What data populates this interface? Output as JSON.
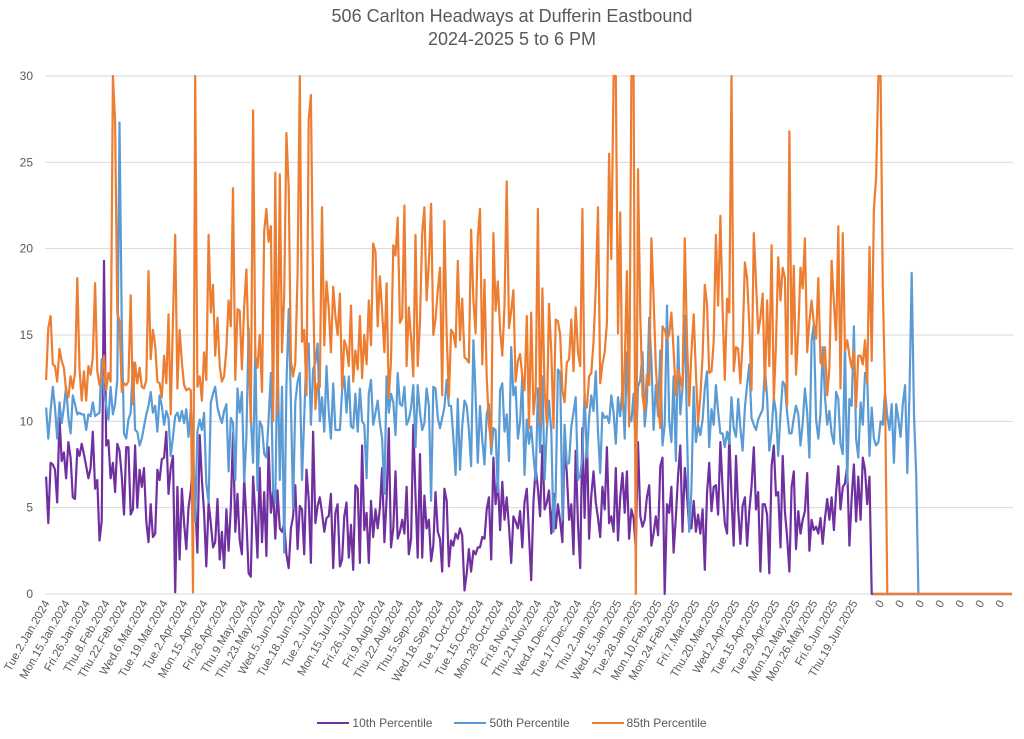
{
  "chart_data": {
    "type": "line",
    "title": "506 Carlton Headways at Dufferin Eastbound",
    "subtitle": "2024-2025 5 to 6 PM",
    "xlabel": "",
    "ylabel": "",
    "ylim": [
      0,
      30
    ],
    "yticks": [
      0,
      5,
      10,
      15,
      20,
      25,
      30
    ],
    "grid": true,
    "legend_position": "bottom",
    "x_tick_labels": [
      "Tue.2.Jan.2024",
      "Mon.15.Jan.2024",
      "Fri.26.Jan.2024",
      "Thu.8.Feb.2024",
      "Thu.22.Feb.2024",
      "Wed.6.Mar.2024",
      "Tue.19.Mar.2024",
      "Tue.2.Apr.2024",
      "Mon.15.Apr.2024",
      "Fri.26.Apr.2024",
      "Thu.9.May.2024",
      "Thu.23.May.2024",
      "Wed.5.Jun.2024",
      "Tue.18.Jun.2024",
      "Tue.2.Jul.2024",
      "Mon.15.Jul.2024",
      "Fri.26.Jul.2024",
      "Fri.9.Aug.2024",
      "Thu.22.Aug.2024",
      "Thu.5.Sep.2024",
      "Wed.18.Sep.2024",
      "Tue.1.Oct.2024",
      "Tue.15.Oct.2024",
      "Mon.28.Oct.2024",
      "Fri.8.Nov.2024",
      "Thu.21.Nov.2024",
      "Wed.4.Dec.2024",
      "Tue.17.Dec.2024",
      "Thu.2.Jan.2025",
      "Wed.15.Jan.2025",
      "Tue.28.Jan.2025",
      "Mon.10.Feb.2025",
      "Mon.24.Feb.2025",
      "Fri.7.Mar.2025",
      "Thu.20.Mar.2025",
      "Wed.2.Apr.2025",
      "Tue.15.Apr.2025",
      "Tue.29.Apr.2025",
      "Mon.12.May.2025",
      "Mon.26.May.2025",
      "Fri.6.Jun.2025",
      "Thu.19.Jun.2025",
      "0",
      "0",
      "0",
      "0",
      "0",
      "0",
      "0"
    ],
    "points_per_tick": 9,
    "date_tick_count": 42,
    "trailing_zero_points": 63,
    "series": [
      {
        "name": "10th Percentile",
        "color": "#7030a0",
        "values": [
          6.8,
          4.1,
          7.6,
          7.5,
          7.2,
          5.3,
          10.2,
          7.7,
          8.2,
          6.7,
          8.8,
          7.9,
          5.6,
          5.5,
          8.4,
          8.0,
          8.7,
          8.1,
          7.4,
          6.7,
          7.3,
          9.4,
          6.1,
          6.6,
          3.1,
          4.2,
          19.3,
          8.6,
          8.9,
          6.7,
          7.6,
          5.9,
          8.7,
          8.3,
          6.8,
          4.6,
          8.5,
          8.5,
          4.6,
          4.9,
          8.6,
          5.0,
          7.2,
          6.2,
          7.3,
          4.2,
          3.0,
          5.2,
          3.3,
          3.5,
          7.2,
          6.6,
          7.8,
          7.9,
          9.4,
          5.8,
          7.3,
          8.0,
          0.1,
          6.2,
          2.0,
          6.1,
          4.1,
          2.6,
          5.0,
          6.0,
          7.6,
          5.4,
          2.4,
          9.2,
          6.6,
          4.7,
          1.6,
          5.3,
          4.1,
          2.7,
          3.0,
          5.5,
          2.0,
          3.6,
          1.5,
          4.9,
          2.5,
          5.0,
          9.3,
          3.6,
          5.8,
          3.1,
          2.3,
          6.7,
          4.3,
          1.2,
          1.0,
          6.8,
          4.6,
          2.1,
          7.3,
          3.0,
          5.9,
          2.2,
          8.5,
          4.7,
          6.0,
          3.2,
          6.0,
          3.8,
          3.6,
          4.1,
          2.3,
          1.5,
          3.8,
          4.5,
          6.3,
          2.6,
          5.1,
          4.9,
          2.3,
          7.2,
          5.5,
          1.8,
          9.4,
          4.1,
          5.1,
          5.6,
          4.7,
          3.6,
          4.4,
          4.5,
          5.8,
          1.5,
          4.7,
          5.2,
          1.6,
          2.0,
          4.5,
          5.3,
          2.1,
          4.0,
          1.4,
          6.3,
          6.1,
          1.8,
          8.6,
          3.7,
          4.7,
          1.8,
          5.4,
          3.3,
          4.9,
          3.8,
          5.0,
          7.3,
          3.0,
          5.5,
          9.6,
          2.7,
          3.8,
          7.1,
          3.2,
          3.6,
          4.3,
          3.5,
          6.2,
          2.3,
          3.2,
          9.8,
          5.7,
          2.1,
          8.1,
          2.1,
          5.7,
          3.8,
          4.3,
          1.9,
          2.8,
          5.9,
          3.6,
          3.2,
          1.3,
          6.1,
          5.4,
          1.6,
          3.1,
          2.8,
          3.5,
          3.2,
          3.8,
          3.4,
          0.2,
          1.2,
          2.6,
          1.3,
          2.5,
          2.3,
          2.7,
          2.7,
          3.3,
          3.2,
          4.9,
          5.6,
          2.0,
          7.9,
          5.2,
          6.7,
          3.7,
          6.5,
          4.3,
          5.6,
          3.9,
          1.8,
          4.5,
          4.2,
          3.8,
          4.8,
          2.7,
          5.3,
          6.1,
          3.4,
          0.8,
          5.4,
          7.3,
          6.1,
          4.5,
          8.6,
          4.9,
          5.3,
          6.0,
          3.5,
          5.8,
          3.8,
          5.2,
          4.2,
          3.0,
          8.8,
          7.0,
          4.3,
          5.2,
          2.3,
          8.3,
          4.0,
          1.5,
          9.6,
          4.4,
          9.2,
          3.2,
          5.7,
          7.1,
          5.3,
          4.4,
          3.3,
          6.2,
          4.9,
          8.5,
          4.1,
          4.5,
          3.6,
          7.3,
          3.1,
          5.6,
          7.0,
          4.7,
          7.1,
          3.2,
          4.9,
          4.4,
          2.6,
          8.8,
          4.5,
          3.9,
          4.3,
          5.6,
          6.3,
          2.8,
          3.5,
          4.5,
          3.4,
          7.4,
          7.9,
          0.0,
          5.2,
          4.7,
          6.2,
          2.4,
          4.5,
          6.9,
          8.6,
          3.6,
          7.3,
          5.7,
          3.9,
          3.8,
          5.4,
          3.6,
          4.6,
          3.5,
          4.9,
          1.4,
          5.8,
          7.6,
          4.8,
          6.2,
          6.3,
          4.6,
          8.8,
          6.1,
          4.1,
          3.5,
          9.3,
          5.6,
          2.8,
          8.0,
          4.9,
          2.9,
          5.1,
          5.6,
          2.8,
          4.8,
          6.2,
          8.5,
          4.9,
          5.9,
          1.3,
          5.2,
          5.2,
          4.6,
          1.2,
          7.4,
          8.6,
          5.7,
          5.9,
          2.7,
          8.0,
          4.8,
          3.3,
          1.3,
          6.2,
          7.1,
          2.6,
          4.8,
          3.5,
          4.3,
          4.8,
          7.0,
          2.5,
          4.3,
          3.7,
          3.9,
          3.5,
          4.4,
          2.9,
          4.4,
          5.5,
          4.3,
          5.6,
          3.7,
          5.9,
          7.4,
          4.9,
          6.2,
          6.4,
          7.4,
          2.8,
          5.6,
          7.5,
          4.2,
          6.8,
          4.3,
          7.9,
          7.2,
          5.2,
          6.8,
          0.0
        ]
      },
      {
        "name": "50th Percentile",
        "color": "#5b9bd5",
        "values": [
          10.8,
          9.0,
          10.6,
          12.0,
          10.8,
          9.0,
          11.1,
          9.9,
          10.8,
          12.0,
          10.2,
          9.3,
          11.5,
          11.0,
          10.4,
          10.5,
          10.4,
          10.4,
          9.5,
          10.4,
          10.3,
          11.1,
          10.3,
          10.4,
          10.5,
          13.6,
          11.6,
          10.9,
          10.1,
          12.0,
          10.4,
          11.0,
          12.4,
          27.3,
          15.4,
          9.3,
          9.0,
          10.1,
          10.5,
          13.4,
          9.5,
          9.4,
          8.6,
          9.0,
          9.7,
          10.4,
          10.9,
          11.7,
          10.5,
          10.9,
          9.4,
          11.5,
          10.9,
          9.8,
          10.6,
          10.2,
          8.0,
          9.1,
          10.3,
          10.5,
          10.0,
          10.6,
          9.9,
          10.7,
          9.1,
          10.7,
          9.0,
          4.2,
          9.4,
          10.1,
          9.5,
          10.5,
          6.4,
          5.3,
          11.1,
          11.6,
          12.0,
          10.8,
          10.3,
          9.9,
          10.6,
          11.0,
          7.1,
          10.2,
          9.9,
          6.6,
          11.9,
          10.5,
          11.7,
          6.5,
          9.1,
          15.4,
          10.2,
          7.6,
          14.3,
          6.0,
          10.0,
          9.7,
          8.1,
          7.9,
          10.1,
          12.8,
          6.0,
          5.3,
          14.4,
          6.6,
          12.0,
          2.4,
          12.0,
          16.5,
          11.1,
          5.0,
          11.1,
          12.3,
          12.8,
          6.6,
          10.2,
          14.0,
          14.5,
          9.8,
          13.0,
          13.4,
          14.5,
          10.0,
          11.4,
          9.4,
          13.2,
          10.6,
          9.0,
          12.2,
          9.5,
          9.5,
          9.5,
          11.8,
          12.6,
          10.5,
          12.6,
          9.7,
          9.6,
          11.6,
          9.4,
          11.9,
          10.0,
          9.8,
          6.7,
          11.6,
          12.4,
          9.8,
          10.5,
          11.2,
          9.9,
          9.0,
          5.8,
          12.6,
          10.5,
          11.6,
          11.1,
          9.2,
          12.8,
          11.0,
          10.9,
          12.0,
          9.8,
          10.1,
          10.8,
          12.1,
          8.5,
          12.1,
          10.5,
          9.5,
          9.9,
          11.9,
          10.9,
          5.4,
          12.0,
          11.9,
          10.2,
          9.6,
          10.2,
          10.8,
          12.4,
          10.9,
          10.9,
          9.1,
          6.9,
          11.3,
          7.2,
          9.7,
          11.2,
          10.9,
          9.5,
          7.4,
          14.7,
          11.5,
          7.6,
          10.9,
          8.9,
          7.5,
          10.4,
          11.0,
          8.1,
          9.6,
          9.5,
          5.9,
          11.8,
          12.2,
          9.4,
          10.4,
          7.7,
          14.3,
          11.5,
          12.0,
          9.0,
          10.0,
          12.6,
          6.9,
          10.1,
          8.7,
          9.7,
          8.0,
          6.6,
          11.9,
          8.2,
          12.6,
          6.6,
          9.5,
          11.2,
          9.4,
          3.6,
          5.9,
          13.0,
          12.8,
          4.3,
          9.8,
          7.5,
          7.6,
          9.7,
          10.5,
          11.4,
          6.6,
          6.9,
          7.9,
          11.6,
          7.9,
          10.2,
          11.5,
          10.6,
          12.9,
          9.4,
          7.0,
          10.5,
          10.2,
          10.3,
          9.9,
          11.5,
          10.5,
          8.7,
          11.4,
          10.3,
          12.0,
          9.0,
          14.0,
          10.4,
          10.0,
          11.6,
          7.9,
          12.0,
          12.4,
          14.0,
          9.7,
          11.2,
          16.0,
          13.5,
          9.5,
          12.1,
          10.3,
          14.1,
          8.6,
          9.8,
          16.7,
          10.0,
          8.8,
          12.6,
          7.7,
          14.9,
          10.4,
          11.9,
          16.1,
          9.5,
          3.6,
          6.0,
          12.0,
          8.8,
          9.8,
          9.2,
          10.1,
          11.9,
          12.9,
          8.5,
          10.7,
          9.8,
          12.1,
          10.6,
          9.3,
          9.3,
          8.5,
          9.4,
          8.7,
          11.4,
          9.6,
          9.1,
          11.3,
          9.6,
          8.3,
          10.8,
          12.1,
          13.3,
          10.2,
          9.8,
          9.5,
          10.1,
          10.4,
          10.7,
          13.1,
          11.4,
          8.3,
          9.4,
          11.4,
          10.5,
          8.0,
          10.4,
          12.3,
          12.1,
          10.5,
          9.3,
          9.3,
          10.2,
          10.9,
          10.4,
          8.6,
          9.9,
          11.9,
          10.5,
          7.9,
          14.7,
          15.6,
          10.1,
          9.0,
          10.5,
          14.3,
          11.4,
          9.8,
          10.6,
          9.3,
          8.7,
          11.7,
          11.3,
          8.7,
          8.1,
          14.5,
          6.4,
          11.3,
          10.9,
          15.5,
          9.0,
          7.9,
          11.1,
          9.8,
          12.8,
          12.6,
          8.0,
          10.8,
          9.0,
          8.6,
          8.8,
          10.0,
          9.8,
          11.7,
          10.3,
          9.5,
          11.0,
          7.6,
          11.0,
          10.1,
          9.1,
          11.0,
          12.1,
          7.0,
          11.6,
          18.6,
          10.4,
          6.9,
          0.0
        ]
      },
      {
        "name": "85th Percentile",
        "color": "#ed7d31",
        "values": [
          12.4,
          15.4,
          16.1,
          13.3,
          13.2,
          12.3,
          14.2,
          13.5,
          13.1,
          11.8,
          11.4,
          12.6,
          11.9,
          12.8,
          18.3,
          13.1,
          11.2,
          12.9,
          11.2,
          13.2,
          12.7,
          13.7,
          18.0,
          12.9,
          12.1,
          12.6,
          13.8,
          11.8,
          12.8,
          12.3,
          30.0,
          27.4,
          16.3,
          15.8,
          11.7,
          12.2,
          12.1,
          12.3,
          17.3,
          11.0,
          13.4,
          12.2,
          13.1,
          12.0,
          11.9,
          12.4,
          18.7,
          13.6,
          15.3,
          14.4,
          12.3,
          12.2,
          11.4,
          13.8,
          12.2,
          16.2,
          10.4,
          16.0,
          20.8,
          11.9,
          15.3,
          13.4,
          12.1,
          11.8,
          11.9,
          11.8,
          0.1,
          30.0,
          12.0,
          12.6,
          11.2,
          14.0,
          12.4,
          20.8,
          16.3,
          17.9,
          13.8,
          16.0,
          13.2,
          12.3,
          12.6,
          14.2,
          17.0,
          15.5,
          23.5,
          12.4,
          16.5,
          16.4,
          13.0,
          16.7,
          18.8,
          14.2,
          9.9,
          28.0,
          13.8,
          13.1,
          15.0,
          11.7,
          21.0,
          22.3,
          20.4,
          21.3,
          10.0,
          24.4,
          10.5,
          24.3,
          14.0,
          17.3,
          26.7,
          23.5,
          13.5,
          12.6,
          13.4,
          18.6,
          30.0,
          14.6,
          15.3,
          11.5,
          27.5,
          28.9,
          17.8,
          10.7,
          12.2,
          12.0,
          22.4,
          14.4,
          18.1,
          16.6,
          14.0,
          17.8,
          16.1,
          15.0,
          17.4,
          11.9,
          14.7,
          14.3,
          13.2,
          16.7,
          12.3,
          14.1,
          13.0,
          16.1,
          12.5,
          15.0,
          13.3,
          17.0,
          14.4,
          20.3,
          19.8,
          15.5,
          18.4,
          16.4,
          14.0,
          18.0,
          11.4,
          13.5,
          20.2,
          19.6,
          21.8,
          15.7,
          16.0,
          22.5,
          13.2,
          16.6,
          14.8,
          12.6,
          20.8,
          13.2,
          15.8,
          20.9,
          22.4,
          17.0,
          19.2,
          22.6,
          15.0,
          15.9,
          17.6,
          18.9,
          11.5,
          21.6,
          15.0,
          11.4,
          15.3,
          15.1,
          14.3,
          19.3,
          14.7,
          17.1,
          13.7,
          13.6,
          13.4,
          21.1,
          17.0,
          15.1,
          20.7,
          22.3,
          13.3,
          18.2,
          12.6,
          9.9,
          8.6,
          20.9,
          16.4,
          18.1,
          15.3,
          13.8,
          16.7,
          23.9,
          15.4,
          16.4,
          17.6,
          12.3,
          13.5,
          13.9,
          12.6,
          11.8,
          16.1,
          9.6,
          16.3,
          10.4,
          11.8,
          22.3,
          9.8,
          17.7,
          11.8,
          9.9,
          16.8,
          14.0,
          9.6,
          15.9,
          15.8,
          15.0,
          11.8,
          11.1,
          13.4,
          13.6,
          15.9,
          12.9,
          16.6,
          14.0,
          13.2,
          22.3,
          11.2,
          10.8,
          12.6,
          12.8,
          14.6,
          17.8,
          22.4,
          12.2,
          13.3,
          14.0,
          15.7,
          25.5,
          19.4,
          30.0,
          30.0,
          15.1,
          22.1,
          10.7,
          13.2,
          18.7,
          9.7,
          30.0,
          30.0,
          0.0,
          24.6,
          16.1,
          11.5,
          10.6,
          12.7,
          12.1,
          20.6,
          17.1,
          13.2,
          10.9,
          9.6,
          15.5,
          15.3,
          14.8,
          15.0,
          16.3,
          14.1,
          11.5,
          13.0,
          12.5,
          11.9,
          20.6,
          14.7,
          10.9,
          14.0,
          16.2,
          12.8,
          9.9,
          11.4,
          13.8,
          17.9,
          16.8,
          12.8,
          12.9,
          14.6,
          20.8,
          16.7,
          21.9,
          16.5,
          12.4,
          17.1,
          16.3,
          30.0,
          12.9,
          14.3,
          14.2,
          12.2,
          14.6,
          19.2,
          18.3,
          15.6,
          11.8,
          20.9,
          18.1,
          15.1,
          16.0,
          17.4,
          11.8,
          17.0,
          13.2,
          20.2,
          11.2,
          14.5,
          19.5,
          17.0,
          18.9,
          18.3,
          10.9,
          26.8,
          13.9,
          19.0,
          12.7,
          15.2,
          18.9,
          17.7,
          20.6,
          14.0,
          15.8,
          17.0,
          15.7,
          14.8,
          18.3,
          13.4,
          13.2,
          14.3,
          11.5,
          13.1,
          19.3,
          16.9,
          14.7,
          21.3,
          11.9,
          20.9,
          14.1,
          14.7,
          13.8,
          13.1,
          14.1,
          10.8,
          13.8,
          13.8,
          13.3,
          14.7,
          12.2,
          20.1,
          13.5,
          22.3,
          24.1,
          30.0,
          30.0,
          17.7,
          12.0,
          0.0
        ]
      }
    ]
  }
}
